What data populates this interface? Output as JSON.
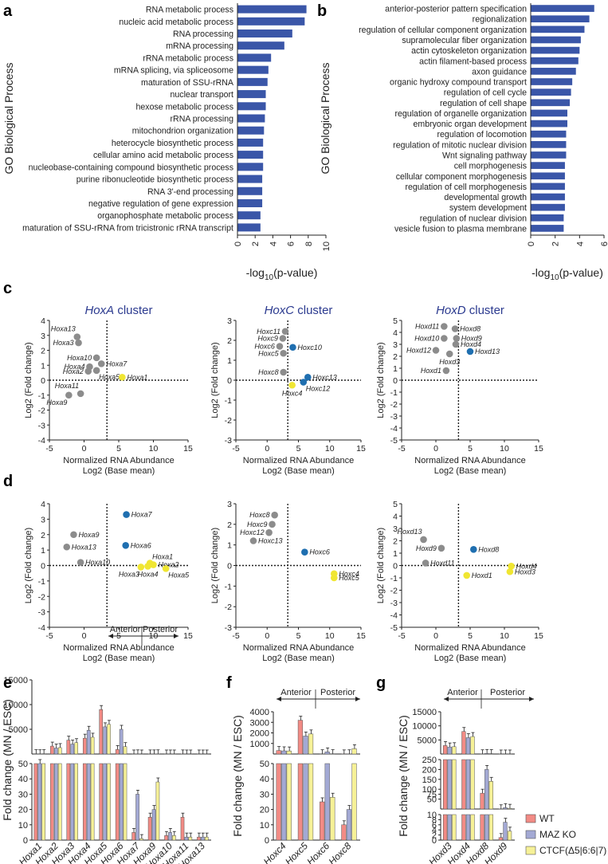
{
  "panel_letters": [
    "a",
    "b",
    "c",
    "d",
    "e",
    "f",
    "g"
  ],
  "chart_data": [
    {
      "id": "a",
      "type": "bar",
      "orientation": "horizontal",
      "title": "",
      "ylabel": "GO Biological Process",
      "xlabel": "-log10(p-value)",
      "xlim": [
        0,
        10
      ],
      "xticks": [
        0,
        2,
        4,
        6,
        8,
        10
      ],
      "categories": [
        "RNA metabolic process",
        "nucleic acid metabolic process",
        "RNA processing",
        "mRNA processing",
        "rRNA metabolic process",
        "mRNA splicing, via spliceosome",
        "maturation of SSU-rRNA",
        "nuclear transport",
        "hexose metabolic process",
        "rRNA processing",
        "mitochondrion organization",
        "heterocycle biosynthetic process",
        "cellular amino acid metabolic process",
        "nucleobase-containing compound biosynthetic process",
        "purine ribonucleotide biosynthetic process",
        "RNA 3'-end processing",
        "negative regulation of gene expression",
        "organophosphate metabolic process",
        "maturation of SSU-rRNA from tricistronic rRNA transcript"
      ],
      "values": [
        7.8,
        7.6,
        6.2,
        5.3,
        3.8,
        3.5,
        3.4,
        3.2,
        3.2,
        3.1,
        3.0,
        2.9,
        2.9,
        2.9,
        2.8,
        2.8,
        2.8,
        2.6,
        2.6
      ]
    },
    {
      "id": "b",
      "type": "bar",
      "orientation": "horizontal",
      "title": "",
      "ylabel": "GO Biological Process",
      "xlabel": "-log10(p-value)",
      "xlim": [
        0,
        6
      ],
      "xticks": [
        0,
        2,
        4,
        6
      ],
      "categories": [
        "anterior-posterior pattern specification",
        "regionalization",
        "regulation of cellular component organization",
        "supramolecular fiber organization",
        "actin cytoskeleton organization",
        "actin filament-based process",
        "axon guidance",
        "organic hydroxy compound transport",
        "regulation of cell cycle",
        "regulation of cell shape",
        "regulation of organelle organization",
        "embryonic organ development",
        "regulation of locomotion",
        "regulation of mitotic nuclear division",
        "Wnt signaling pathway",
        "cell morphogenesis",
        "cellular component morphogenesis",
        "regulation of cell morphogenesis",
        "developmental growth",
        "system development",
        "regulation of nuclear division",
        "vesicle fusion to plasma membrane"
      ],
      "values": [
        5.2,
        4.8,
        4.4,
        4.1,
        4.0,
        3.9,
        3.7,
        3.4,
        3.3,
        3.2,
        3.0,
        3.0,
        2.9,
        2.9,
        2.9,
        2.8,
        2.8,
        2.8,
        2.8,
        2.8,
        2.7,
        2.7
      ]
    },
    {
      "id": "c1",
      "type": "scatter",
      "title": "HoxA cluster",
      "title_italic": "HoxA",
      "xlabel": "Normalized RNA Abundance",
      "xlabel2": "Log2 (Base mean)",
      "ylabel": "Log2 (Fold change)",
      "xlim": [
        -5,
        15
      ],
      "ylim": [
        -4,
        4
      ],
      "xticks": [
        -5,
        0,
        5,
        10,
        15
      ],
      "yticks": [
        -4,
        -3,
        -2,
        -1,
        0,
        1,
        2,
        3,
        4
      ],
      "vline": 3.3,
      "points": [
        {
          "label": "Hoxa13",
          "x": -1.0,
          "y": 2.9,
          "c": "gray",
          "lp": "ul"
        },
        {
          "label": "Hoxa3",
          "x": -0.8,
          "y": 2.5,
          "c": "gray",
          "lp": "l"
        },
        {
          "label": "Hoxa10",
          "x": 1.8,
          "y": 1.5,
          "c": "gray",
          "lp": "l"
        },
        {
          "label": "Hoxa7",
          "x": 2.5,
          "y": 1.1,
          "c": "gray",
          "lp": "r"
        },
        {
          "label": "Hoxa4",
          "x": 0.8,
          "y": 0.9,
          "c": "gray",
          "lp": "l"
        },
        {
          "label": "Hoxa2",
          "x": 0.6,
          "y": 0.6,
          "c": "gray",
          "lp": "l"
        },
        {
          "label": "Hoxa5",
          "x": 1.8,
          "y": 0.65,
          "c": "gray",
          "lp": "br"
        },
        {
          "label": "Hoxa1",
          "x": 5.5,
          "y": 0.2,
          "c": "yellow",
          "lp": "r"
        },
        {
          "label": "Hoxa11",
          "x": -0.5,
          "y": -0.9,
          "c": "gray",
          "lp": "ul"
        },
        {
          "label": "Hoxa9",
          "x": -2.2,
          "y": -1.0,
          "c": "gray",
          "lp": "bl"
        }
      ]
    },
    {
      "id": "c2",
      "type": "scatter",
      "title": "HoxC cluster",
      "title_italic": "HoxC",
      "xlabel": "Normalized RNA Abundance",
      "xlabel2": "Log2 (Base mean)",
      "ylabel": "Log2 (Fold change)",
      "xlim": [
        -5,
        15
      ],
      "ylim": [
        -3,
        3
      ],
      "xticks": [
        -5,
        0,
        5,
        10,
        15
      ],
      "yticks": [
        -3,
        -2,
        -1,
        0,
        1,
        2,
        3
      ],
      "vline": 3.3,
      "points": [
        {
          "label": "Hoxc11",
          "x": 2.9,
          "y": 2.45,
          "c": "gray",
          "lp": "l"
        },
        {
          "label": "Hoxc9",
          "x": 2.5,
          "y": 2.1,
          "c": "gray",
          "lp": "l"
        },
        {
          "label": "Hoxc6",
          "x": 2.0,
          "y": 1.7,
          "c": "gray",
          "lp": "l"
        },
        {
          "label": "Hoxc10",
          "x": 4.1,
          "y": 1.65,
          "c": "blue",
          "lp": "r"
        },
        {
          "label": "Hoxc5",
          "x": 2.6,
          "y": 1.35,
          "c": "gray",
          "lp": "l"
        },
        {
          "label": "Hoxc8",
          "x": 2.6,
          "y": 0.4,
          "c": "gray",
          "lp": "l"
        },
        {
          "label": "Hoxc13",
          "x": 6.5,
          "y": 0.15,
          "c": "blue",
          "lp": "r"
        },
        {
          "label": "Hoxc12",
          "x": 5.8,
          "y": -0.1,
          "c": "blue",
          "lp": "br"
        },
        {
          "label": "Hoxc4",
          "x": 4.0,
          "y": -0.25,
          "c": "yellow",
          "lp": "b"
        }
      ]
    },
    {
      "id": "c3",
      "type": "scatter",
      "title": "HoxD cluster",
      "title_italic": "HoxD",
      "xlabel": "Normalized RNA Abundance",
      "xlabel2": "Log2 (Base mean)",
      "ylabel": "Log2 (Fold change)",
      "xlim": [
        -5,
        15
      ],
      "ylim": [
        -5,
        5
      ],
      "xticks": [
        -5,
        0,
        5,
        10,
        15
      ],
      "yticks": [
        -5,
        -4,
        -3,
        -2,
        -1,
        0,
        1,
        2,
        3,
        4,
        5
      ],
      "vline": 3.3,
      "points": [
        {
          "label": "Hoxd11",
          "x": 1.2,
          "y": 4.5,
          "c": "gray",
          "lp": "l"
        },
        {
          "label": "Hoxd8",
          "x": 2.8,
          "y": 4.3,
          "c": "gray",
          "lp": "r"
        },
        {
          "label": "Hoxd10",
          "x": 1.2,
          "y": 3.5,
          "c": "gray",
          "lp": "l"
        },
        {
          "label": "Hoxd9",
          "x": 3.0,
          "y": 3.5,
          "c": "gray",
          "lp": "r"
        },
        {
          "label": "Hoxd4",
          "x": 2.9,
          "y": 3.0,
          "c": "gray",
          "lp": "r"
        },
        {
          "label": "Hoxd12",
          "x": 0.0,
          "y": 2.5,
          "c": "gray",
          "lp": "l"
        },
        {
          "label": "Hoxd13",
          "x": 5.0,
          "y": 2.4,
          "c": "blue",
          "lp": "r"
        },
        {
          "label": "Hoxd3",
          "x": 2.0,
          "y": 2.2,
          "c": "gray",
          "lp": "b"
        },
        {
          "label": "Hoxd1",
          "x": 1.5,
          "y": 0.8,
          "c": "gray",
          "lp": "l"
        }
      ]
    },
    {
      "id": "d1",
      "type": "scatter",
      "title": "",
      "xlabel": "Normalized RNA Abundance",
      "xlabel2": "Log2 (Base mean)",
      "ylabel": "Log2 (Fold change)",
      "xlim": [
        -5,
        15
      ],
      "ylim": [
        -4,
        4
      ],
      "xticks": [
        -5,
        0,
        5,
        10,
        15
      ],
      "yticks": [
        -4,
        -3,
        -2,
        -1,
        0,
        1,
        2,
        3,
        4
      ],
      "vline": 3.3,
      "points": [
        {
          "label": "Hoxa7",
          "x": 6.1,
          "y": 3.3,
          "c": "blue",
          "lp": "r"
        },
        {
          "label": "Hoxa9",
          "x": -1.5,
          "y": 2.0,
          "c": "gray",
          "lp": "r"
        },
        {
          "label": "Hoxa6",
          "x": 6.0,
          "y": 1.3,
          "c": "blue",
          "lp": "r"
        },
        {
          "label": "Hoxa13",
          "x": -2.5,
          "y": 1.2,
          "c": "gray",
          "lp": "r"
        },
        {
          "label": "Hoxa10",
          "x": -0.5,
          "y": 0.2,
          "c": "gray",
          "lp": "r"
        },
        {
          "label": "Hoxa1",
          "x": 9.5,
          "y": 0.15,
          "c": "yellow",
          "lp": "ur"
        },
        {
          "label": "Hoxa2",
          "x": 10.0,
          "y": 0.05,
          "c": "yellow",
          "lp": "r"
        },
        {
          "label": "Hoxa3",
          "x": 8.2,
          "y": -0.1,
          "c": "yellow",
          "lp": "bl"
        },
        {
          "label": "Hoxa4",
          "x": 9.2,
          "y": -0.05,
          "c": "yellow",
          "lp": "b"
        },
        {
          "label": "Hoxa5",
          "x": 11.8,
          "y": -0.2,
          "c": "yellow",
          "lp": "br"
        }
      ]
    },
    {
      "id": "d2",
      "type": "scatter",
      "title": "",
      "xlabel": "Normalized RNA Abundance",
      "xlabel2": "Log2 (Base mean)",
      "ylabel": "Log2 (Fold change)",
      "xlim": [
        -5,
        15
      ],
      "ylim": [
        -3,
        3
      ],
      "xticks": [
        -5,
        0,
        5,
        10,
        15
      ],
      "yticks": [
        -3,
        -2,
        -1,
        0,
        1,
        2,
        3
      ],
      "vline": 3.3,
      "points": [
        {
          "label": "Hoxc8",
          "x": 1.2,
          "y": 2.45,
          "c": "gray",
          "lp": "l"
        },
        {
          "label": "Hoxc9",
          "x": 0.8,
          "y": 2.0,
          "c": "gray",
          "lp": "l"
        },
        {
          "label": "Hoxc12",
          "x": 0.3,
          "y": 1.6,
          "c": "gray",
          "lp": "l"
        },
        {
          "label": "Hoxc13",
          "x": -2.2,
          "y": 1.2,
          "c": "gray",
          "lp": "r"
        },
        {
          "label": "Hoxc6",
          "x": 6.0,
          "y": 0.65,
          "c": "blue",
          "lp": "r"
        },
        {
          "label": "Hoxc4",
          "x": 10.7,
          "y": -0.4,
          "c": "yellow",
          "lp": "r"
        },
        {
          "label": "Hoxc5",
          "x": 10.7,
          "y": -0.6,
          "c": "yellow",
          "lp": "r"
        }
      ]
    },
    {
      "id": "d3",
      "type": "scatter",
      "title": "",
      "xlabel": "Normalized RNA Abundance",
      "xlabel2": "Log2 (Base mean)",
      "ylabel": "Log2 (Fold change)",
      "xlim": [
        -5,
        15
      ],
      "ylim": [
        -5,
        5
      ],
      "xticks": [
        -5,
        0,
        5,
        10,
        15
      ],
      "yticks": [
        -5,
        -4,
        -3,
        -2,
        -1,
        0,
        1,
        2,
        3,
        4,
        5
      ],
      "vline": 3.3,
      "points": [
        {
          "label": "Hoxd13",
          "x": -1.8,
          "y": 2.1,
          "c": "gray",
          "lp": "ul"
        },
        {
          "label": "Hoxd9",
          "x": 0.8,
          "y": 1.4,
          "c": "gray",
          "lp": "l"
        },
        {
          "label": "Hoxd8",
          "x": 5.5,
          "y": 1.3,
          "c": "blue",
          "lp": "r"
        },
        {
          "label": "Hoxd11",
          "x": -1.5,
          "y": 0.2,
          "c": "gray",
          "lp": "r"
        },
        {
          "label": "Hoxd4",
          "x": 11.0,
          "y": -0.05,
          "c": "yellow",
          "lp": "r"
        },
        {
          "label": "Hoxd3",
          "x": 10.8,
          "y": -0.5,
          "c": "yellow",
          "lp": "r"
        },
        {
          "label": "Hoxd1",
          "x": 4.5,
          "y": -0.8,
          "c": "yellow",
          "lp": "r"
        }
      ]
    },
    {
      "id": "e",
      "type": "bar",
      "title": "",
      "ylabel": "Fold change (MN / ESC)",
      "series_names": [
        "WT",
        "MAZ KO",
        "CTCF(Δ5|6:6|7)"
      ],
      "categories": [
        "Hoxa1",
        "Hoxa2",
        "Hoxa3",
        "Hoxa4",
        "Hoxa5",
        "Hoxa6",
        "Hoxa7",
        "Hoxa9",
        "Hoxa10",
        "Hoxa11",
        "Hoxa13"
      ],
      "values": [
        [
          60,
          1600,
          2800,
          3200,
          9000,
          900,
          5,
          15,
          3,
          15,
          2
        ],
        [
          50,
          1200,
          2000,
          4800,
          5500,
          5000,
          30,
          20,
          5,
          2,
          2
        ],
        [
          60,
          1300,
          2300,
          3400,
          6000,
          1500,
          1,
          38,
          3,
          2,
          2
        ]
      ],
      "top_ylim": [
        0,
        15000
      ],
      "top_ticks": [
        5000,
        10000,
        15000
      ],
      "bottom_ylim": [
        0,
        50
      ],
      "bottom_ticks": [
        0,
        10,
        20,
        30,
        40,
        50
      ],
      "anterior_label": "Anterior",
      "posterior_label": "Posterior"
    },
    {
      "id": "f",
      "type": "bar",
      "title": "",
      "ylabel": "Fold change (MN / ESC)",
      "series_names": [
        "WT",
        "MAZ KO",
        "CTCF(Δ5|6:6|7)"
      ],
      "categories": [
        "Hoxc4",
        "Hoxc5",
        "Hoxc6",
        "Hoxc8"
      ],
      "values": [
        [
          330,
          3200,
          25,
          10
        ],
        [
          300,
          1700,
          200,
          20
        ],
        [
          290,
          1900,
          28,
          500
        ]
      ],
      "top_ylim": [
        0,
        4000
      ],
      "top_ticks": [
        1000,
        2000,
        3000,
        4000
      ],
      "bottom_ylim": [
        0,
        50
      ],
      "bottom_ticks": [
        0,
        10,
        20,
        30,
        40,
        50
      ],
      "anterior_label": "Anterior",
      "posterior_label": "Posterior"
    },
    {
      "id": "g",
      "type": "bar",
      "title": "",
      "ylabel": "Fold change (MN / ESC)",
      "series_names": [
        "WT",
        "MAZ KO",
        "CTCF(Δ5|6:6|7)"
      ],
      "categories": [
        "Hoxd3",
        "Hoxd4",
        "Hoxd8",
        "Hoxd9"
      ],
      "values": [
        [
          3000,
          8000,
          80,
          1
        ],
        [
          2500,
          5800,
          200,
          7
        ],
        [
          2600,
          6200,
          140,
          3.5
        ]
      ],
      "top_ylim": [
        0,
        15000
      ],
      "top_ticks": [
        5000,
        10000,
        15000
      ],
      "mid_ylim": [
        0,
        250
      ],
      "mid_ticks": [
        50,
        75,
        100,
        150,
        200,
        250
      ],
      "bottom_ylim": [
        0,
        10
      ],
      "bottom_ticks": [
        0,
        2,
        4,
        6,
        8,
        10
      ],
      "anterior_label": "Anterior",
      "posterior_label": "Posterior"
    }
  ],
  "legend": {
    "items": [
      "WT",
      "MAZ KO",
      "CTCF(Δ5|6:6|7)"
    ]
  },
  "colors": {
    "go_bar": "#3a56a8",
    "gray_point": "#8c8c8c",
    "blue_point": "#1f6fb0",
    "yellow_point": "#f0e632",
    "wt": "#f28b85",
    "maz": "#a3a9d4",
    "ctcf": "#f6f197",
    "title_blue": "#2b3a8f"
  }
}
